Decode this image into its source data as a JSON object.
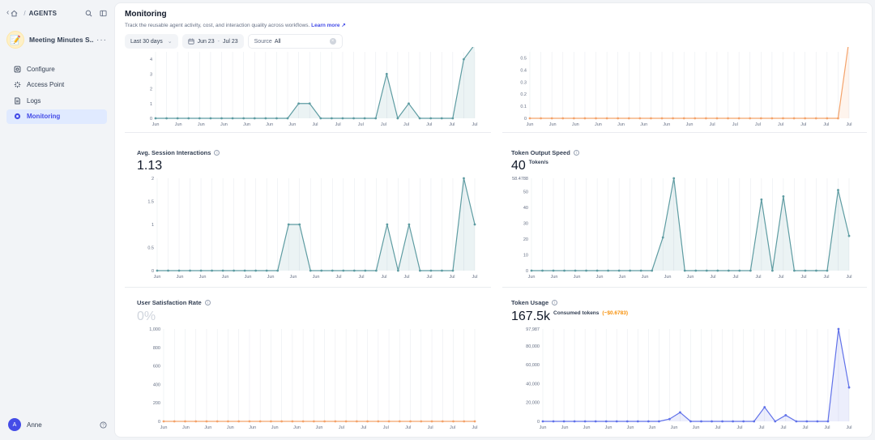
{
  "header": {
    "crumb": "AGENTS"
  },
  "app": {
    "name": "Meeting Minutes S...",
    "icon": "notepad-emoji"
  },
  "nav": {
    "items": [
      {
        "label": "Configure",
        "icon": "configure-icon"
      },
      {
        "label": "Access Point",
        "icon": "access-point-icon"
      },
      {
        "label": "Logs",
        "icon": "logs-icon"
      },
      {
        "label": "Monitoring",
        "icon": "monitoring-icon",
        "active": true
      }
    ]
  },
  "user": {
    "initial": "A",
    "name": "Anne"
  },
  "page": {
    "title": "Monitoring",
    "description": "Track the reusable agent activity, cost, and interaction quality across workflows.",
    "learn_more": "Learn more ↗"
  },
  "filters": {
    "period": "Last 30 days",
    "date_start": "Jun 23",
    "date_sep": "-",
    "date_end": "Jul 23",
    "source_label": "Source",
    "source_value": "All"
  },
  "colors": {
    "teal": "#5e9ca2",
    "orange": "#f4a36b",
    "blue": "#6172e9",
    "accent": "#444ce7"
  },
  "cards": {
    "avg_interactions": {
      "title": "Avg. Session Interactions",
      "value": "1.13"
    },
    "token_speed": {
      "title": "Token Output Speed",
      "value": "40",
      "unit": "Token/s"
    },
    "satisfaction": {
      "title": "User Satisfaction Rate",
      "value": "0%"
    },
    "token_usage": {
      "title": "Token Usage",
      "value": "167.5k",
      "unit": "Consumed tokens",
      "cost": "(~$0.6783)"
    }
  },
  "chart_data": [
    {
      "id": "top-left",
      "type": "area",
      "color": "#5e9ca2",
      "yticks": [
        "0",
        "1",
        "2",
        "3",
        "4"
      ],
      "ylim": [
        0,
        4.5
      ],
      "xlabels": [
        "Jun",
        "Jun",
        "Jun",
        "Jun",
        "Jun",
        "Jun",
        "Jun",
        "Jul",
        "Jul",
        "Jul",
        "Jul",
        "Jul",
        "Jul",
        "Jul",
        "Jul"
      ],
      "values": [
        0,
        0,
        0,
        0,
        0,
        0,
        0,
        0,
        0,
        0,
        0,
        0,
        0,
        1,
        1,
        0,
        0,
        0,
        0,
        0,
        0,
        3,
        0,
        1,
        0,
        0,
        0,
        0,
        4,
        5
      ]
    },
    {
      "id": "top-right",
      "type": "area",
      "color": "#f4a36b",
      "yticks": [
        "0",
        "0.1",
        "0.2",
        "0.3",
        "0.4",
        "0.5"
      ],
      "ylim": [
        0,
        0.55
      ],
      "xlabels": [
        "Jun",
        "Jun",
        "Jun",
        "Jun",
        "Jun",
        "Jun",
        "Jun",
        "Jun",
        "Jul",
        "Jul",
        "Jul",
        "Jul",
        "Jul",
        "Jul",
        "Jul"
      ],
      "values": [
        0,
        0,
        0,
        0,
        0,
        0,
        0,
        0,
        0,
        0,
        0,
        0,
        0,
        0,
        0,
        0,
        0,
        0,
        0,
        0,
        0,
        0,
        0,
        0,
        0,
        0,
        0,
        0,
        0,
        0.65
      ]
    },
    {
      "id": "avg-interactions",
      "type": "area",
      "color": "#5e9ca2",
      "yticks": [
        "0",
        "0.5",
        "1",
        "1.5",
        "2"
      ],
      "ylim": [
        0,
        2
      ],
      "xlabels": [
        "Jun",
        "Jun",
        "Jun",
        "Jun",
        "Jun",
        "Jun",
        "Jun",
        "Jun",
        "Jul",
        "Jul",
        "Jul",
        "Jul",
        "Jul",
        "Jul",
        "Jul"
      ],
      "values": [
        0,
        0,
        0,
        0,
        0,
        0,
        0,
        0,
        0,
        0,
        0,
        0,
        1,
        1,
        0,
        0,
        0,
        0,
        0,
        0,
        0,
        1,
        0,
        1,
        0,
        0,
        0,
        0,
        2,
        1
      ]
    },
    {
      "id": "token-speed",
      "type": "area",
      "color": "#5e9ca2",
      "yticks": [
        "0",
        "10",
        "20",
        "30",
        "40",
        "50",
        "58.4788"
      ],
      "ylim": [
        0,
        58.4788
      ],
      "xlabels": [
        "Jun",
        "Jun",
        "Jun",
        "Jun",
        "Jun",
        "Jun",
        "Jun",
        "Jun",
        "Jul",
        "Jul",
        "Jul",
        "Jul",
        "Jul",
        "Jul",
        "Jul"
      ],
      "values": [
        0,
        0,
        0,
        0,
        0,
        0,
        0,
        0,
        0,
        0,
        0,
        0,
        21,
        58.4788,
        0,
        0,
        0,
        0,
        0,
        0,
        0,
        45,
        0,
        47,
        0,
        0,
        0,
        0,
        51,
        22
      ]
    },
    {
      "id": "satisfaction",
      "type": "area",
      "color": "#f4a36b",
      "yticks": [
        "0",
        "200",
        "400",
        "600",
        "800",
        "1,000"
      ],
      "ylim": [
        0,
        1000
      ],
      "xlabels": [
        "Jun",
        "Jun",
        "Jun",
        "Jun",
        "Jun",
        "Jun",
        "Jun",
        "Jun",
        "Jul",
        "Jul",
        "Jul",
        "Jul",
        "Jul",
        "Jul",
        "Jul"
      ],
      "values": [
        0,
        0,
        0,
        0,
        0,
        0,
        0,
        0,
        0,
        0,
        0,
        0,
        0,
        0,
        0,
        0,
        0,
        0,
        0,
        0,
        0,
        0,
        0,
        0,
        0,
        0,
        0,
        0,
        0,
        0
      ]
    },
    {
      "id": "token-usage",
      "type": "area",
      "color": "#6172e9",
      "yticks": [
        "0",
        "20,000",
        "40,000",
        "60,000",
        "80,000",
        "97,987"
      ],
      "ylim": [
        0,
        97987
      ],
      "xlabels": [
        "Jun",
        "Jun",
        "Jun",
        "Jun",
        "Jun",
        "Jun",
        "Jun",
        "Jun",
        "Jul",
        "Jul",
        "Jul",
        "Jul",
        "Jul",
        "Jul",
        "Jul"
      ],
      "values": [
        0,
        0,
        0,
        0,
        0,
        0,
        0,
        0,
        0,
        0,
        0,
        0,
        2500,
        9500,
        0,
        0,
        0,
        0,
        0,
        0,
        0,
        15000,
        0,
        6500,
        0,
        0,
        0,
        0,
        97987,
        36000
      ]
    }
  ]
}
